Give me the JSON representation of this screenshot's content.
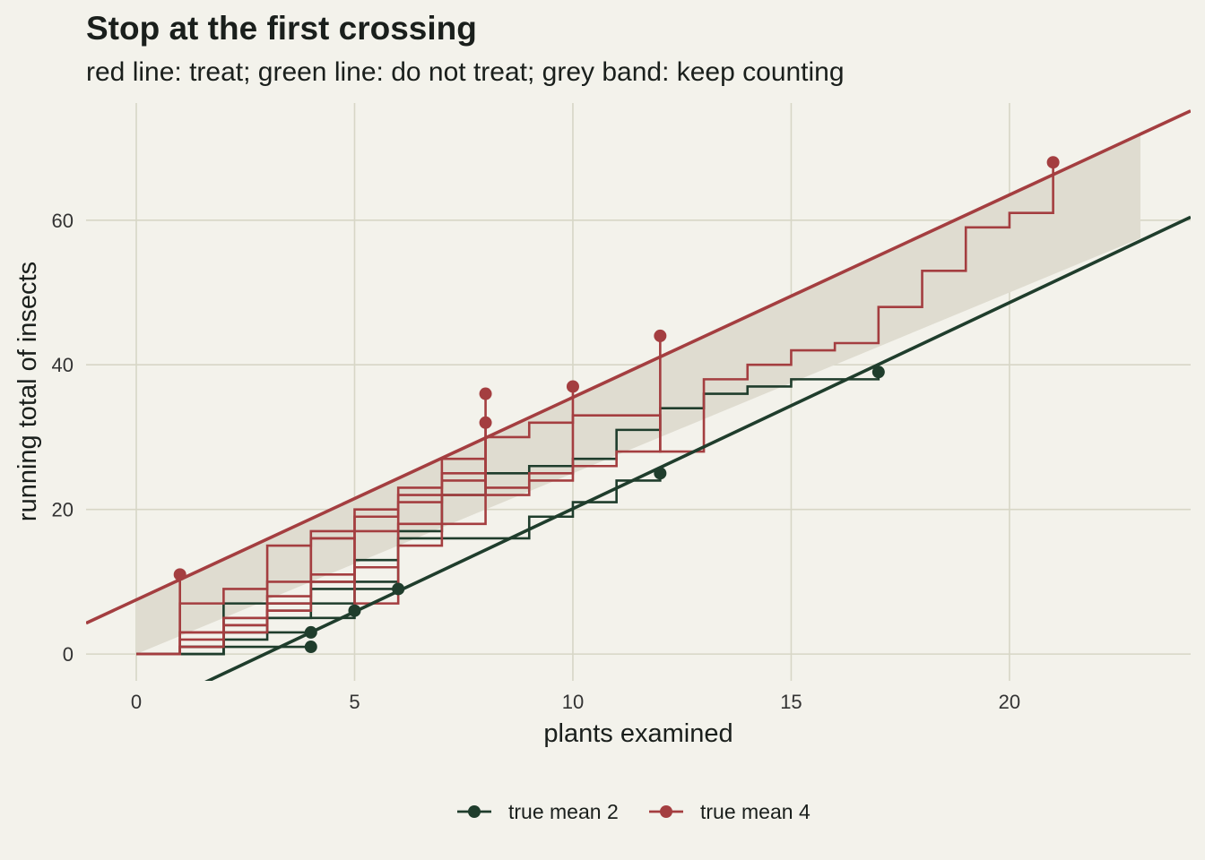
{
  "chart_data": {
    "type": "line",
    "title": "Stop at the first crossing",
    "subtitle": "red line: treat; green line: do not treat; grey band: keep counting",
    "xlabel": "plants examined",
    "ylabel": "running total of insects",
    "xlim": [
      -1.15,
      24.15
    ],
    "ylim": [
      -3.7,
      76.2
    ],
    "x_ticks": [
      0,
      5,
      10,
      15,
      20
    ],
    "y_ticks": [
      0,
      20,
      40,
      60
    ],
    "grid": true,
    "legend_position": "bottom",
    "colors": {
      "background": "#f3f2eb",
      "grid": "#d7d6c6",
      "band": "#dfdcd0",
      "treat": "#a43e40",
      "no_treat": "#1f3d2c"
    },
    "decision_lines": {
      "treat": {
        "intercept": 7.5,
        "slope": 2.8
      },
      "no_treat": {
        "intercept": -8.4,
        "slope": 2.85
      }
    },
    "band": {
      "x_start": 0,
      "x_end": 23,
      "upper": {
        "intercept": 7.5,
        "slope": 2.8
      },
      "lower": {
        "intercept": 0,
        "slope": 2.5
      }
    },
    "series": [
      {
        "name": "true mean 2",
        "color": "#1f3d2c",
        "paths": [
          {
            "points": [
              [
                0,
                0
              ],
              [
                1,
                0
              ],
              [
                2,
                1
              ],
              [
                3,
                1
              ],
              [
                4,
                1
              ]
            ],
            "stop": [
              4,
              1
            ]
          },
          {
            "points": [
              [
                0,
                0
              ],
              [
                1,
                0
              ],
              [
                2,
                2
              ],
              [
                3,
                3
              ],
              [
                4,
                3
              ]
            ],
            "stop": [
              4,
              3
            ]
          },
          {
            "points": [
              [
                0,
                0
              ],
              [
                1,
                0
              ],
              [
                2,
                5
              ],
              [
                3,
                5
              ],
              [
                4,
                5
              ],
              [
                5,
                6
              ]
            ],
            "stop": [
              5,
              6
            ]
          },
          {
            "points": [
              [
                0,
                0
              ],
              [
                1,
                0
              ],
              [
                2,
                7
              ],
              [
                3,
                7
              ],
              [
                4,
                10
              ],
              [
                5,
                10
              ],
              [
                6,
                9
              ]
            ],
            "stop": [
              6,
              9
            ]
          },
          {
            "points": [
              [
                0,
                0
              ],
              [
                1,
                1
              ],
              [
                2,
                4
              ],
              [
                3,
                6
              ],
              [
                4,
                7
              ],
              [
                5,
                13
              ],
              [
                6,
                17
              ],
              [
                7,
                22
              ],
              [
                8,
                25
              ],
              [
                9,
                26
              ],
              [
                10,
                27
              ],
              [
                11,
                31
              ],
              [
                12,
                34
              ],
              [
                13,
                36
              ],
              [
                14,
                37
              ],
              [
                15,
                38
              ],
              [
                16,
                38
              ],
              [
                17,
                39
              ]
            ],
            "stop": [
              17,
              39
            ]
          },
          {
            "points": [
              [
                0,
                0
              ],
              [
                1,
                1
              ],
              [
                2,
                3
              ],
              [
                3,
                5
              ],
              [
                4,
                9
              ],
              [
                5,
                9
              ],
              [
                6,
                16
              ],
              [
                7,
                16
              ],
              [
                8,
                16
              ],
              [
                9,
                19
              ],
              [
                10,
                21
              ],
              [
                11,
                24
              ],
              [
                12,
                25
              ]
            ],
            "stop": [
              12,
              25
            ]
          }
        ]
      },
      {
        "name": "true mean 4",
        "color": "#a43e40",
        "paths": [
          {
            "points": [
              [
                0,
                0
              ],
              [
                1,
                11
              ]
            ],
            "stop": [
              1,
              11
            ]
          },
          {
            "points": [
              [
                0,
                0
              ],
              [
                1,
                7
              ],
              [
                2,
                9
              ],
              [
                3,
                10
              ],
              [
                4,
                11
              ],
              [
                5,
                12
              ],
              [
                6,
                15
              ],
              [
                7,
                18
              ],
              [
                8,
                32
              ]
            ],
            "stop": [
              8,
              32
            ]
          },
          {
            "points": [
              [
                0,
                0
              ],
              [
                1,
                3
              ],
              [
                2,
                4
              ],
              [
                3,
                6
              ],
              [
                4,
                10
              ],
              [
                5,
                20
              ],
              [
                6,
                22
              ],
              [
                7,
                24
              ],
              [
                8,
                36
              ]
            ],
            "stop": [
              8,
              36
            ]
          },
          {
            "points": [
              [
                0,
                0
              ],
              [
                1,
                2
              ],
              [
                2,
                3
              ],
              [
                3,
                15
              ],
              [
                4,
                16
              ],
              [
                5,
                19
              ],
              [
                6,
                23
              ],
              [
                7,
                25
              ],
              [
                8,
                30
              ],
              [
                9,
                32
              ],
              [
                10,
                37
              ]
            ],
            "stop": [
              10,
              37
            ]
          },
          {
            "points": [
              [
                0,
                0
              ],
              [
                1,
                1
              ],
              [
                2,
                4
              ],
              [
                3,
                7
              ],
              [
                4,
                17
              ],
              [
                5,
                17
              ],
              [
                6,
                21
              ],
              [
                7,
                27
              ],
              [
                8,
                23
              ],
              [
                9,
                25
              ],
              [
                10,
                26
              ],
              [
                11,
                28
              ],
              [
                12,
                44
              ]
            ],
            "stop": [
              12,
              44
            ]
          },
          {
            "points": [
              [
                0,
                0
              ],
              [
                1,
                3
              ],
              [
                2,
                5
              ],
              [
                3,
                8
              ],
              [
                4,
                16
              ],
              [
                5,
                7
              ],
              [
                6,
                18
              ],
              [
                7,
                22
              ],
              [
                8,
                22
              ],
              [
                9,
                24
              ],
              [
                10,
                33
              ],
              [
                11,
                33
              ],
              [
                12,
                28
              ],
              [
                13,
                38
              ],
              [
                14,
                40
              ],
              [
                15,
                42
              ],
              [
                16,
                43
              ],
              [
                17,
                48
              ],
              [
                18,
                53
              ],
              [
                19,
                59
              ],
              [
                20,
                61
              ],
              [
                21,
                68
              ]
            ],
            "stop": [
              21,
              68
            ]
          }
        ]
      }
    ]
  }
}
